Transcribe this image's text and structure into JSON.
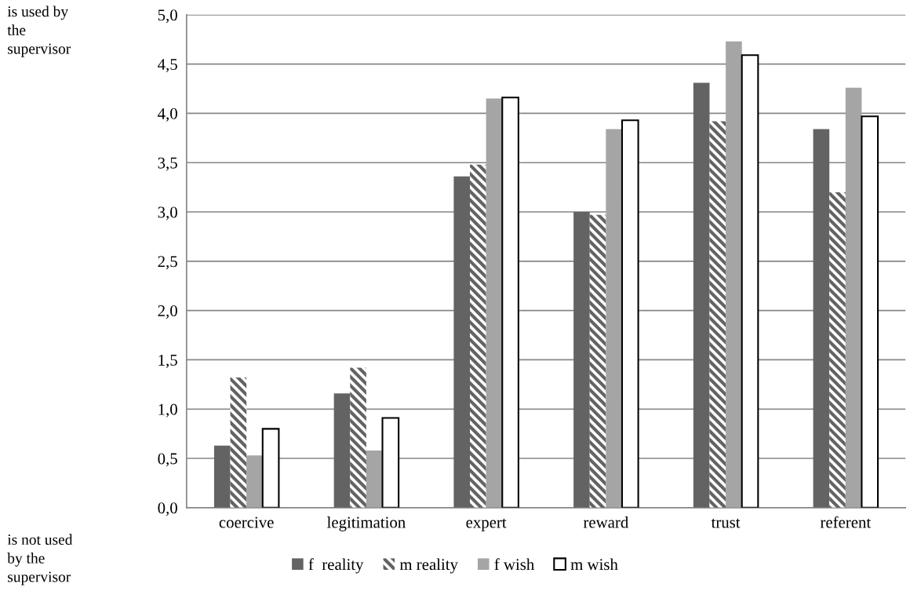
{
  "chart_data": {
    "type": "bar",
    "categories": [
      "coercive",
      "legitimation",
      "expert",
      "reward",
      "trust",
      "referent"
    ],
    "series": [
      {
        "name": "f  reality",
        "color": "#636363",
        "values": [
          0.63,
          1.16,
          3.36,
          3.0,
          4.31,
          3.84
        ]
      },
      {
        "name": "m reality",
        "color": "#636363",
        "values": [
          1.32,
          1.42,
          3.48,
          2.97,
          3.92,
          3.2
        ]
      },
      {
        "name": "f wish",
        "color": "#a5a5a5",
        "values": [
          0.53,
          0.58,
          4.15,
          3.84,
          4.73,
          4.26
        ]
      },
      {
        "name": "m wish",
        "color": "#ffffff",
        "values": [
          0.8,
          0.91,
          4.16,
          3.93,
          4.59,
          3.97
        ]
      }
    ],
    "ylim": [
      0,
      5
    ],
    "yticks": [
      {
        "value": 0,
        "label": "0,0"
      },
      {
        "value": 0.5,
        "label": "0,5"
      },
      {
        "value": 1,
        "label": "1,0"
      },
      {
        "value": 1.5,
        "label": "1,5"
      },
      {
        "value": 2,
        "label": "2,0"
      },
      {
        "value": 2.5,
        "label": "2,5"
      },
      {
        "value": 3,
        "label": "3,0"
      },
      {
        "value": 3.5,
        "label": "3,5"
      },
      {
        "value": 4,
        "label": "4,0"
      },
      {
        "value": 4.5,
        "label": "4,5"
      },
      {
        "value": 5,
        "label": "5,0"
      }
    ],
    "annotations": [
      "is used by\nthe\nsupervisor",
      "is not used\nby the\nsupervisor"
    ],
    "grid": "y",
    "legend": "bottom"
  }
}
